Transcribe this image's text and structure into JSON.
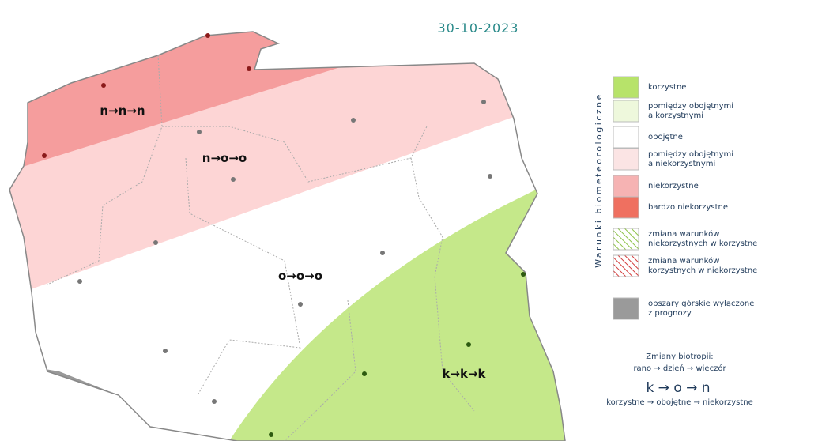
{
  "date": "30-10-2023",
  "zones": [
    {
      "label": "n→n→n"
    },
    {
      "label": "n→o→o"
    },
    {
      "label": "o→o→o"
    },
    {
      "label": "k→k→k"
    }
  ],
  "legend": {
    "title": "Warunki biometeorologiczne",
    "items": [
      {
        "lines": [
          "korzystne"
        ]
      },
      {
        "lines": [
          "pomiędzy obojętnymi",
          "a korzystnymi"
        ]
      },
      {
        "lines": [
          "obojętne"
        ]
      },
      {
        "lines": [
          "pomiędzy obojętnymi",
          "a niekorzystnymi"
        ]
      },
      {
        "lines": [
          "niekorzystne"
        ]
      },
      {
        "lines": [
          "bardzo niekorzystne"
        ]
      },
      {
        "lines": [
          "zmiana warunków",
          "niekorzystnych w korzystne"
        ]
      },
      {
        "lines": [
          "zmiana warunków",
          "korzystnych w niekorzystne"
        ]
      },
      {
        "lines": [
          "obszary górskie wyłączone",
          "z prognozy"
        ]
      }
    ]
  },
  "biotropy": {
    "title": "Zmiany biotropii:",
    "sequence": "rano → dzień → wieczór",
    "example": "k → o → n",
    "example_meaning": "korzystne → obojętne → niekorzystne"
  }
}
